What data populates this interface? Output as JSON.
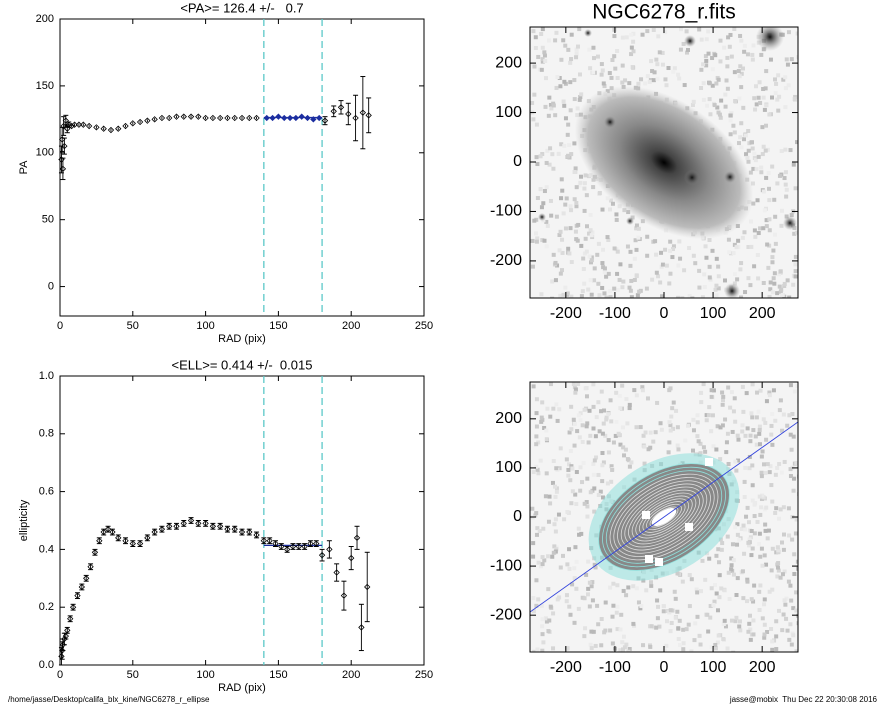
{
  "chart_data": [
    {
      "type": "scatter",
      "title": "<PA>= 126.4 +/-   0.7",
      "xlabel": "RAD (pix)",
      "ylabel": "PA",
      "xlim": [
        0,
        250
      ],
      "ylim": [
        -22,
        200
      ],
      "xticks": [
        0,
        50,
        100,
        150,
        200,
        250
      ],
      "yticks": [
        0,
        50,
        100,
        150,
        200
      ],
      "vlines": [
        140,
        180
      ],
      "fit_value": 126.4,
      "series": [
        {
          "name": "inner",
          "color": "#000000",
          "x": [
            1,
            1.5,
            2,
            2.5,
            3,
            4,
            5,
            6,
            8,
            10,
            13,
            16,
            20,
            25,
            30,
            35,
            40,
            45,
            50,
            55,
            60,
            65,
            70,
            75,
            80,
            85,
            90,
            95,
            100,
            105,
            110,
            115,
            120,
            125,
            130,
            135
          ],
          "values": [
            95,
            110,
            88,
            120,
            105,
            124,
            118,
            121,
            120,
            121,
            121,
            121,
            120,
            119,
            118,
            117,
            118,
            120,
            122,
            123,
            124,
            125,
            126,
            126,
            127,
            127,
            127,
            127,
            126,
            126,
            126,
            126,
            126,
            126,
            126,
            126
          ],
          "errors": [
            10,
            9,
            8,
            7,
            6,
            4,
            3,
            2,
            1,
            1,
            1,
            1,
            1,
            1,
            1,
            1,
            1,
            1,
            1,
            1,
            1,
            1,
            1,
            1,
            1,
            1,
            1,
            1,
            1,
            1,
            1,
            1,
            1,
            1,
            1,
            1
          ]
        },
        {
          "name": "fit",
          "color": "#1c2ea0",
          "x": [
            142,
            146,
            150,
            154,
            158,
            162,
            166,
            170,
            174,
            178
          ],
          "values": [
            126,
            126,
            127,
            126,
            126,
            126,
            127,
            126,
            125,
            126
          ],
          "errors": [
            1,
            1,
            1,
            1,
            1,
            1,
            1,
            1,
            1,
            1
          ]
        },
        {
          "name": "outer",
          "color": "#000000",
          "x": [
            182,
            188,
            193,
            198,
            203,
            208,
            212
          ],
          "values": [
            124,
            131,
            134,
            129,
            126,
            130,
            128
          ],
          "errors": [
            3,
            4,
            5,
            8,
            17,
            27,
            13
          ]
        }
      ]
    },
    {
      "type": "scatter",
      "title": "<ELL>= 0.414 +/-  0.015",
      "xlabel": "RAD (pix)",
      "ylabel": "ellipticity",
      "xlim": [
        0,
        250
      ],
      "ylim": [
        0,
        1
      ],
      "xticks": [
        0,
        50,
        100,
        150,
        200,
        250
      ],
      "yticks": [
        {
          "value": 0,
          "label": "0.0"
        },
        0.2,
        0.4,
        0.6,
        0.8,
        {
          "value": 1,
          "label": "1.0"
        }
      ],
      "vlines": [
        140,
        180
      ],
      "fit_value": 0.414,
      "series": [
        {
          "name": "inner",
          "color": "#000000",
          "x": [
            1,
            1.5,
            2,
            3,
            4,
            5,
            7,
            9,
            12,
            15,
            18,
            21,
            24,
            27,
            30,
            33,
            36,
            40,
            45,
            50,
            55,
            60,
            65,
            70,
            75,
            80,
            85,
            90,
            95,
            100,
            105,
            110,
            115,
            120,
            125,
            130,
            135
          ],
          "values": [
            0.03,
            0.05,
            0.07,
            0.09,
            0.1,
            0.12,
            0.16,
            0.2,
            0.24,
            0.27,
            0.3,
            0.34,
            0.39,
            0.43,
            0.46,
            0.47,
            0.46,
            0.44,
            0.43,
            0.42,
            0.42,
            0.44,
            0.46,
            0.47,
            0.48,
            0.48,
            0.49,
            0.5,
            0.49,
            0.49,
            0.48,
            0.48,
            0.47,
            0.47,
            0.46,
            0.46,
            0.45
          ],
          "errors": [
            0.03,
            0.03,
            0.02,
            0.02,
            0.01,
            0.01,
            0.01,
            0.01,
            0.01,
            0.01,
            0.01,
            0.01,
            0.01,
            0.01,
            0.01,
            0.01,
            0.01,
            0.01,
            0.01,
            0.01,
            0.01,
            0.01,
            0.01,
            0.01,
            0.01,
            0.01,
            0.01,
            0.01,
            0.01,
            0.01,
            0.01,
            0.01,
            0.01,
            0.01,
            0.01,
            0.01,
            0.01
          ]
        },
        {
          "name": "fit",
          "color": "#000000",
          "x": [
            140,
            144,
            148,
            152,
            156,
            160,
            164,
            168,
            172,
            176
          ],
          "values": [
            0.43,
            0.43,
            0.42,
            0.41,
            0.4,
            0.41,
            0.41,
            0.41,
            0.42,
            0.42
          ],
          "errors": [
            0.01,
            0.01,
            0.01,
            0.01,
            0.01,
            0.01,
            0.01,
            0.01,
            0.01,
            0.01
          ]
        },
        {
          "name": "outer",
          "color": "#000000",
          "x": [
            180,
            185,
            190,
            195,
            200,
            204,
            207,
            211
          ],
          "values": [
            0.38,
            0.4,
            0.32,
            0.24,
            0.37,
            0.44,
            0.13,
            0.27
          ],
          "errors": [
            0.02,
            0.03,
            0.03,
            0.05,
            0.04,
            0.04,
            0.08,
            0.12
          ]
        }
      ]
    },
    {
      "type": "image",
      "title": "NGC6278_r.fits",
      "xlim": [
        -273,
        273
      ],
      "ylim": [
        -275,
        273
      ],
      "xticks": [
        -200,
        -100,
        0,
        100,
        200
      ],
      "yticks": [
        -200,
        -100,
        0,
        100,
        200
      ]
    },
    {
      "type": "image",
      "xlim": [
        -273,
        273
      ],
      "ylim": [
        -275,
        275
      ],
      "xticks": [
        -200,
        -100,
        0,
        100,
        200
      ],
      "yticks": [
        -200,
        -100,
        0,
        100,
        200
      ],
      "contours": true
    }
  ],
  "footer": {
    "left": "/home/jasse/Desktop/califa_blx_kine/NGC6278_r_ellipse",
    "right": "jasse@mobix  Thu Dec 22 20:30:08 2016"
  }
}
